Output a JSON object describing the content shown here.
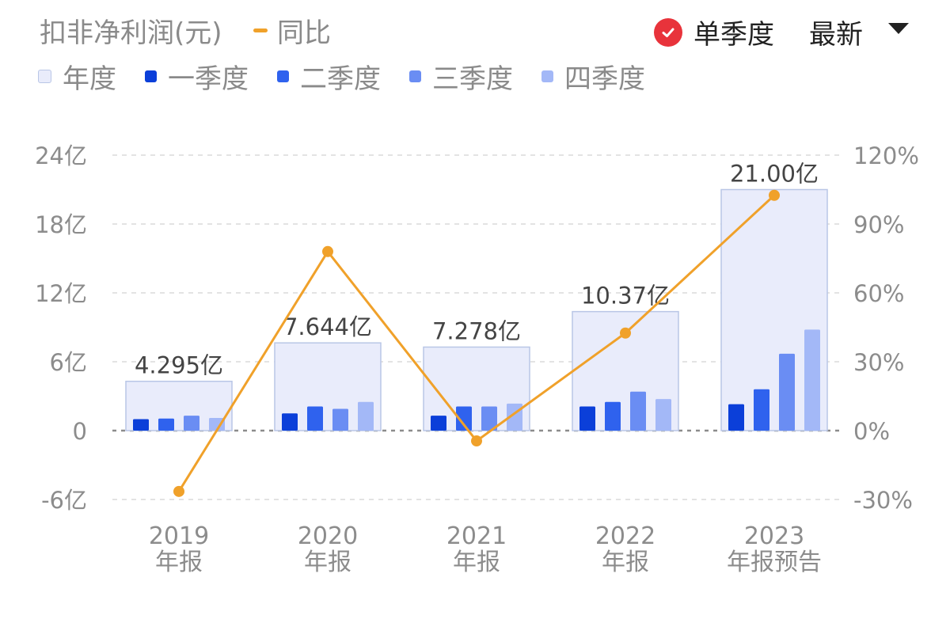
{
  "header": {
    "metric_title": "扣非净利润(元)",
    "yoy_legend_label": "同比",
    "single_quarter_label": "单季度",
    "latest_label": "最新"
  },
  "legend": [
    {
      "label": "年度",
      "color": "#e9ecfb"
    },
    {
      "label": "一季度",
      "color": "#0b3fd9"
    },
    {
      "label": "二季度",
      "color": "#2f62ee"
    },
    {
      "label": "三季度",
      "color": "#6a8df3"
    },
    {
      "label": "四季度",
      "color": "#a3b8f7"
    }
  ],
  "colors": {
    "annual_fill": "#e9ecfb",
    "annual_stroke": "#b9c6e6",
    "yoy_line": "#f0a12a",
    "check_badge": "#e8333b"
  },
  "chart_data": {
    "type": "bar",
    "categories": [
      {
        "year": "2019",
        "label": "年报"
      },
      {
        "year": "2020",
        "label": "年报"
      },
      {
        "year": "2021",
        "label": "年报"
      },
      {
        "year": "2022",
        "label": "年报"
      },
      {
        "year": "2023",
        "label": "年报预告"
      }
    ],
    "annual": {
      "name": "年度",
      "values": [
        4.295,
        7.644,
        7.278,
        10.37,
        21.0
      ],
      "labels": [
        "4.295亿",
        "7.644亿",
        "7.278亿",
        "10.37亿",
        "21.00亿"
      ]
    },
    "quarters": [
      {
        "name": "一季度",
        "values": [
          1.0,
          1.5,
          1.3,
          2.1,
          2.3
        ]
      },
      {
        "name": "二季度",
        "values": [
          1.05,
          2.1,
          2.1,
          2.5,
          3.6
        ]
      },
      {
        "name": "三季度",
        "values": [
          1.3,
          1.9,
          2.1,
          3.4,
          6.7
        ]
      },
      {
        "name": "四季度",
        "values": [
          1.1,
          2.5,
          2.35,
          2.75,
          8.8
        ]
      }
    ],
    "yoy": {
      "name": "同比",
      "values": [
        -26.5,
        78.0,
        -4.5,
        42.5,
        102.5
      ]
    },
    "y_left": {
      "min": -6,
      "max": 24,
      "ticks": [
        24,
        18,
        12,
        6,
        0,
        -6
      ],
      "tick_labels": [
        "24亿",
        "18亿",
        "12亿",
        "6亿",
        "0",
        "-6亿"
      ]
    },
    "y_right": {
      "min": -30,
      "max": 120,
      "ticks": [
        120,
        90,
        60,
        30,
        0,
        -30
      ],
      "tick_labels": [
        "120%",
        "90%",
        "60%",
        "30%",
        "0%",
        "-30%"
      ]
    },
    "grid": true
  }
}
